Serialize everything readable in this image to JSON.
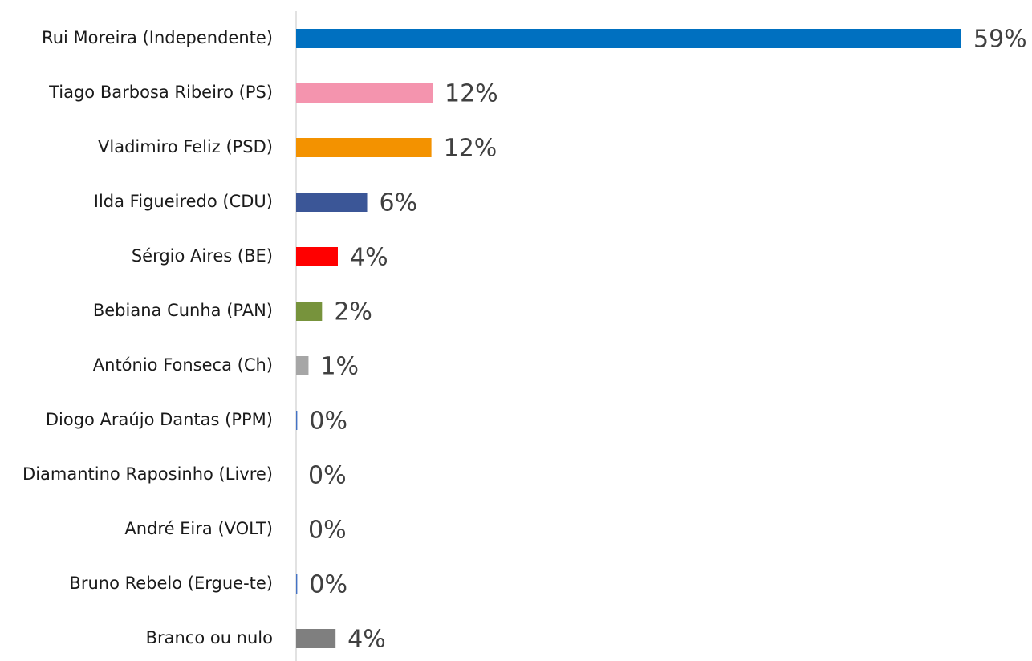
{
  "chart_data": {
    "type": "barh",
    "categories": [
      "Rui Moreira (Independente)",
      "Tiago Barbosa Ribeiro (PS)",
      "Vladimiro Feliz (PSD)",
      "Ilda Figueiredo (CDU)",
      "Sérgio Aires (BE)",
      "Bebiana Cunha (PAN)",
      "António Fonseca (Ch)",
      "Diogo Araújo Dantas (PPM)",
      "Diamantino Raposinho (Livre)",
      "André Eira (VOLT)",
      "Bruno Rebelo (Ergue-te)",
      "Branco ou nulo"
    ],
    "values": [
      59,
      12.1,
      12,
      6.3,
      3.7,
      2.3,
      1.1,
      0.1,
      0,
      0,
      0.1,
      3.5
    ],
    "value_labels": [
      "59%",
      "12%",
      "12%",
      "6%",
      "4%",
      "2%",
      "1%",
      "0%",
      "0%",
      "0%",
      "0%",
      "4%"
    ],
    "colors": [
      "#0070c0",
      "#f494ae",
      "#f39200",
      "#3b5697",
      "#ff0000",
      "#77933c",
      "#a6a6a6",
      "#4472c4",
      "#4472c4",
      "#4472c4",
      "#4472c4",
      "#7f7f7f"
    ]
  }
}
